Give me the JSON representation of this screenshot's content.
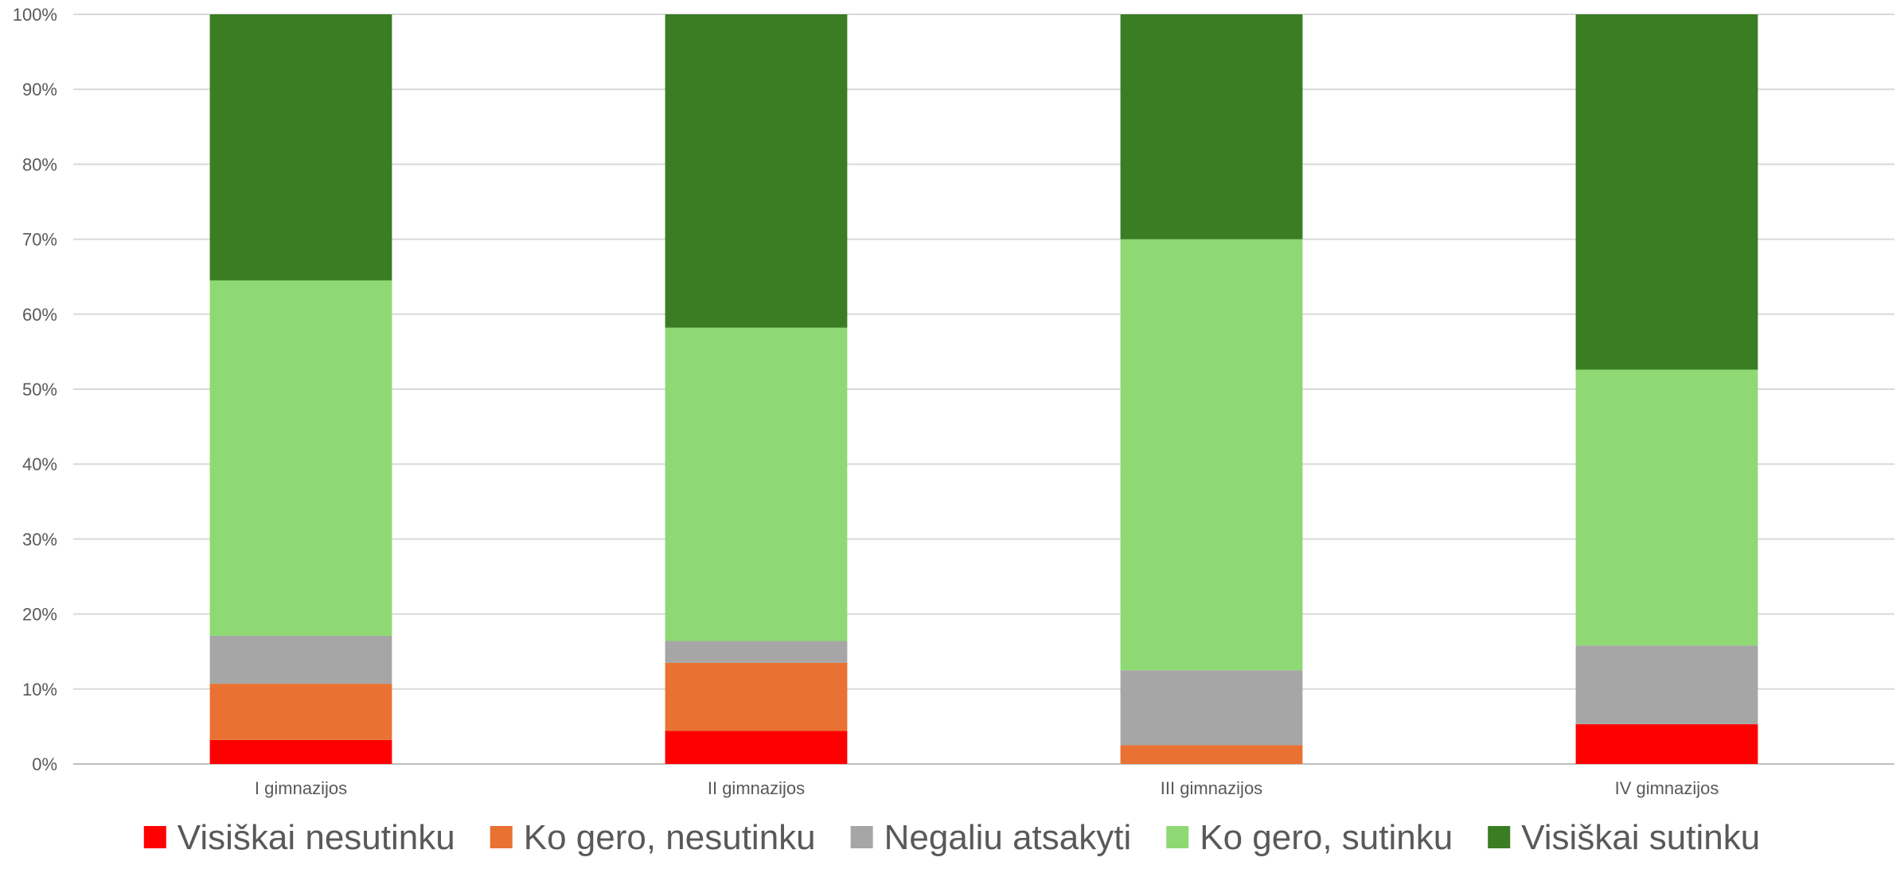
{
  "chart_data": {
    "type": "bar",
    "stacked": true,
    "categories": [
      "I gimnazijos",
      "II gimnazijos",
      "III gimnazijos",
      "IV gimnazijos"
    ],
    "ylim": [
      0,
      100
    ],
    "y_ticks": [
      "0%",
      "10%",
      "20%",
      "30%",
      "40%",
      "50%",
      "60%",
      "70%",
      "80%",
      "90%",
      "100%"
    ],
    "grid": true,
    "legend_position": "bottom",
    "series": [
      {
        "name": "Visiškai nesutinku",
        "color": "#FF0000",
        "values": [
          3.2,
          4.4,
          0,
          5.3
        ]
      },
      {
        "name": "Ko gero, nesutinku",
        "color": "#E97132",
        "values": [
          7.5,
          9.1,
          2.5,
          0
        ]
      },
      {
        "name": "Negaliu atsakyti",
        "color": "#A6A6A6",
        "values": [
          6.4,
          2.9,
          10.0,
          10.5
        ]
      },
      {
        "name": "Ko gero, sutinku",
        "color": "#8ED973",
        "values": [
          47.4,
          41.8,
          57.5,
          36.8
        ]
      },
      {
        "name": "Visiškai sutinku",
        "color": "#3A7D22",
        "values": [
          35.5,
          41.8,
          30.0,
          47.4
        ]
      }
    ]
  }
}
